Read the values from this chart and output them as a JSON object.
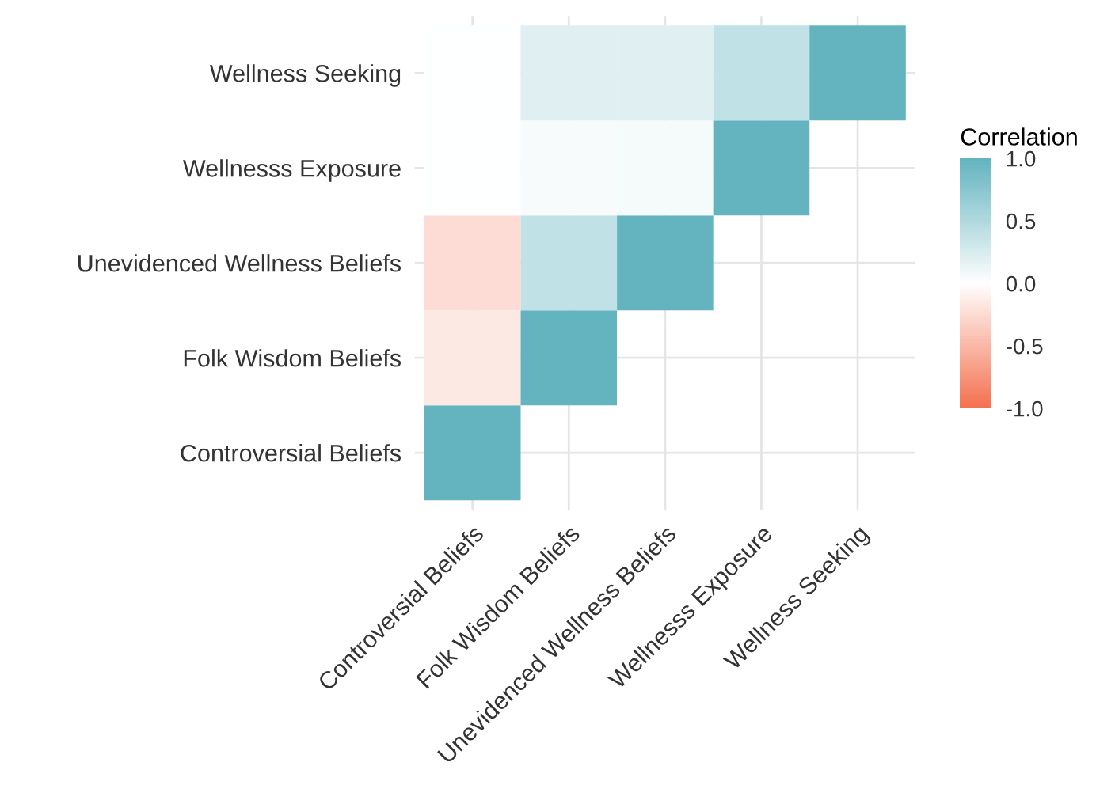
{
  "chart_data": {
    "type": "heatmap",
    "categories": [
      "Controversial Beliefs",
      "Folk Wisdom Beliefs",
      "Unevidenced Wellness Beliefs",
      "Wellnesss Exposure",
      "Wellness Seeking"
    ],
    "y_categories": [
      "Wellness Seeking",
      "Wellnesss Exposure",
      "Unevidenced Wellness Beliefs",
      "Folk Wisdom Beliefs",
      "Controversial Beliefs"
    ],
    "cells": [
      [
        0.0,
        0.2,
        0.2,
        0.4,
        1.0
      ],
      [
        0.0,
        0.05,
        0.07,
        1.0,
        null
      ],
      [
        -0.25,
        0.4,
        1.0,
        null,
        null
      ],
      [
        -0.15,
        1.0,
        null,
        null,
        null
      ],
      [
        1.0,
        null,
        null,
        null,
        null
      ]
    ],
    "colors": [
      "#f4714f",
      "#ffffff",
      "#63b4bf"
    ],
    "clabel": "Correlation",
    "clim": [
      -1,
      1
    ],
    "cticks": [
      {
        "value": -1,
        "label": "-1.0"
      },
      {
        "value": -0.5,
        "label": "-0.5"
      },
      {
        "value": 0,
        "label": "0.0"
      },
      {
        "value": 0.5,
        "label": "0.5"
      },
      {
        "value": 1,
        "label": "1.0"
      }
    ],
    "grid": true
  }
}
